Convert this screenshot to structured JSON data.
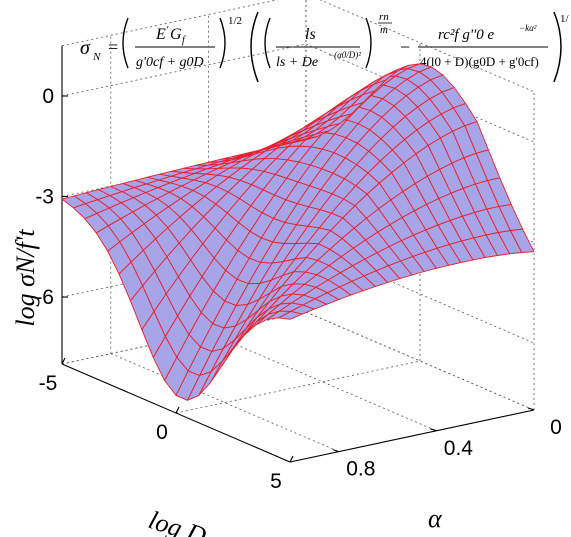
{
  "equation": {
    "lhs": "σ",
    "lhs_sub": "N",
    "eq": "=",
    "f1_num_E": "E",
    "f1_num_prime": "'",
    "f1_num_G": "G",
    "f1_num_Gsub": "f",
    "f1_den": "g'0cf + g0D",
    "exp1": "1/2",
    "f2_num": "ls",
    "f2_den_a": "ls + De",
    "f2_den_exp": "−(α0/D)²",
    "exp2_num": "rn",
    "exp2_den": "m",
    "minus": "−",
    "f3_num": "rc²f g''0 e",
    "f3_num_exp": "−kα²",
    "f3_den": "4(l0 + D)(g0D + g'0cf)",
    "exp3": "1/"
  },
  "chart_data": {
    "type": "surface",
    "title": "",
    "zlabel": "log σN/f't",
    "xlabel": "log D",
    "ylabel": "α",
    "x_ticks": [
      "-5",
      "0",
      "5"
    ],
    "y_ticks": [
      "0",
      "0.4",
      "0.8"
    ],
    "z_ticks": [
      "0",
      "-3",
      "-6"
    ],
    "x_range": [
      -5,
      5
    ],
    "y_range": [
      0,
      1
    ],
    "z_range": [
      -8,
      1.5
    ],
    "grid": true,
    "grid_size": [
      21,
      21
    ],
    "surface_color": "#a8a4e8",
    "mesh_color": "#e8202a",
    "description_of_surface": "z rises from about -3.3 (log D = -5, α = 0) to about 0.4 (log D ≈ 0, α = 0), decreases toward about -2.6 at log D = 5, and drops to about -7.5 near log D ≈ 0, α ≈ 1",
    "corner_values": {
      "logD_-5_alpha_0": -3.3,
      "logD_0_alpha_0": 0.4,
      "logD_5_alpha_0": -2.6,
      "logD_-5_alpha_1": -3.0,
      "logD_0_alpha_1": -7.5,
      "logD_5_alpha_1": -3.6
    }
  }
}
